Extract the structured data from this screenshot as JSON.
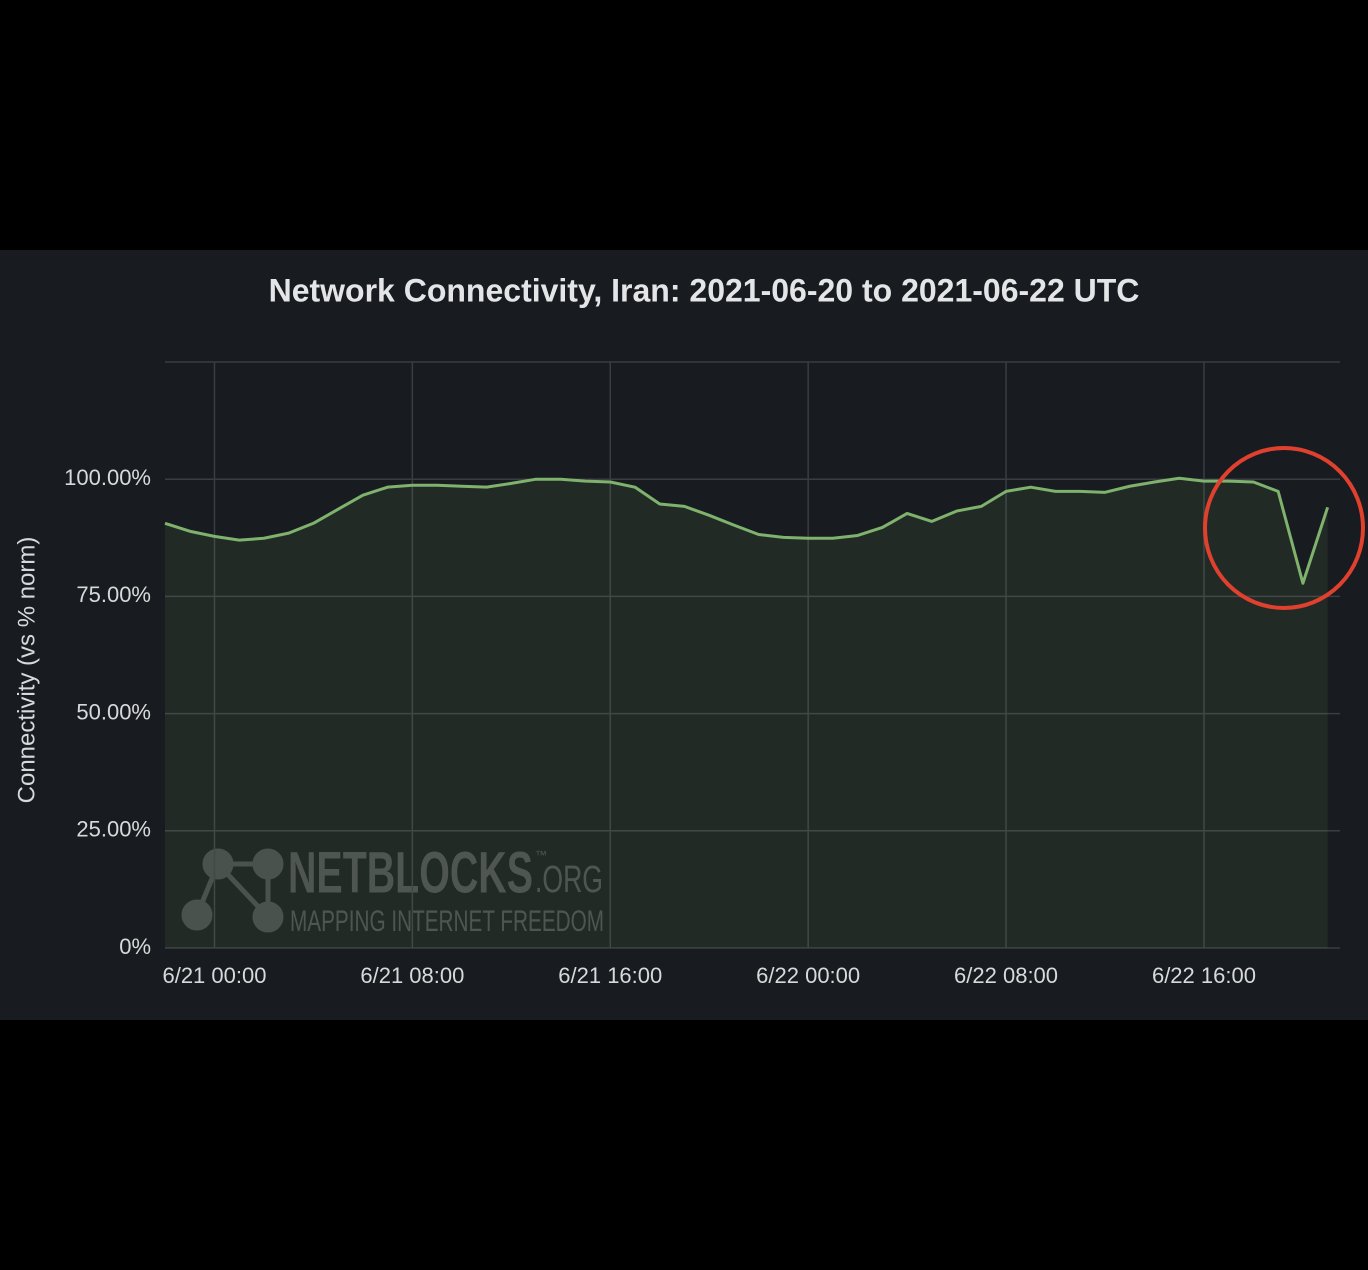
{
  "chart_data": {
    "type": "line",
    "title": "Network Connectivity, Iran: 2021-06-20 to 2021-06-22 UTC",
    "y_label": "Connectivity (vs % norm)",
    "x": [
      "6/20 22:00",
      "6/20 23:00",
      "6/21 00:00",
      "6/21 01:00",
      "6/21 02:00",
      "6/21 03:00",
      "6/21 04:00",
      "6/21 05:00",
      "6/21 06:00",
      "6/21 07:00",
      "6/21 08:00",
      "6/21 09:00",
      "6/21 10:00",
      "6/21 11:00",
      "6/21 12:00",
      "6/21 13:00",
      "6/21 14:00",
      "6/21 15:00",
      "6/21 16:00",
      "6/21 17:00",
      "6/21 18:00",
      "6/21 19:00",
      "6/21 20:00",
      "6/21 21:00",
      "6/21 22:00",
      "6/21 23:00",
      "6/22 00:00",
      "6/22 01:00",
      "6/22 02:00",
      "6/22 03:00",
      "6/22 04:00",
      "6/22 05:00",
      "6/22 06:00",
      "6/22 07:00",
      "6/22 08:00",
      "6/22 09:00",
      "6/22 10:00",
      "6/22 11:00",
      "6/22 12:00",
      "6/22 13:00",
      "6/22 14:00",
      "6/22 15:00",
      "6/22 16:00",
      "6/22 17:00",
      "6/22 18:00",
      "6/22 19:00",
      "6/22 20:00",
      "6/22 21:00"
    ],
    "series": [
      {
        "name": "Connectivity",
        "color": "#7eb26d",
        "values": [
          90.6,
          88.9,
          87.8,
          87.0,
          87.4,
          88.5,
          90.6,
          93.6,
          96.6,
          98.3,
          98.7,
          98.7,
          98.5,
          98.3,
          99.1,
          100,
          100,
          99.6,
          99.4,
          98.3,
          94.7,
          94.2,
          92.3,
          90.2,
          88.2,
          87.6,
          87.4,
          87.4,
          88.0,
          89.7,
          92.7,
          91.0,
          93.2,
          94.2,
          97.4,
          98.3,
          97.4,
          97.4,
          97.2,
          98.5,
          99.4,
          100.2,
          99.6,
          99.6,
          99.4,
          97.4,
          77.8,
          94.0
        ]
      }
    ],
    "xlim": [
      "6/20 22:00",
      "6/22 21:30"
    ],
    "xticks": [
      "6/21 00:00",
      "6/21 08:00",
      "6/21 16:00",
      "6/22 00:00",
      "6/22 08:00",
      "6/22 16:00"
    ],
    "ylim": [
      0,
      125
    ],
    "yticks": [
      {
        "value": 0,
        "label": "0%"
      },
      {
        "value": 25,
        "label": "25.00%"
      },
      {
        "value": 50,
        "label": "50.00%"
      },
      {
        "value": 75,
        "label": "75.00%"
      },
      {
        "value": 100,
        "label": "100.00%"
      }
    ],
    "grid": true,
    "watermark": {
      "name": "NETBLOCKS",
      "tm": "™",
      "tld": ".ORG",
      "tagline": "MAPPING INTERNET FREEDOM"
    }
  }
}
